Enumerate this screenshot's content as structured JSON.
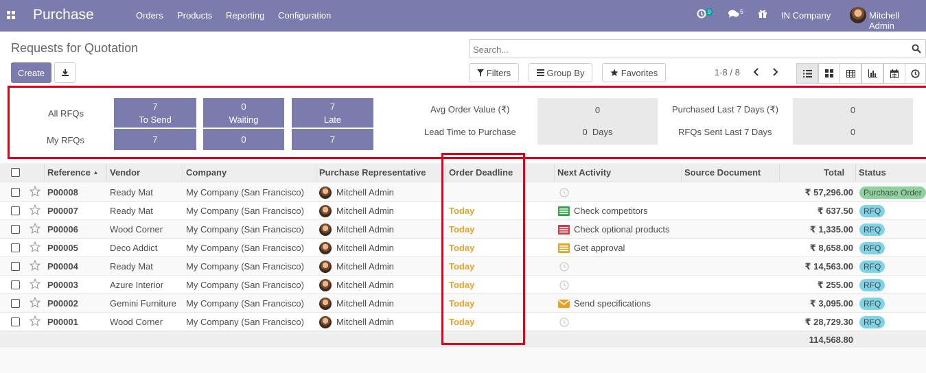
{
  "navbar": {
    "brand": "Purchase",
    "menu": [
      "Orders",
      "Products",
      "Reporting",
      "Configuration"
    ],
    "activity_count": "9",
    "messages_count": "5",
    "company": "IN Company",
    "user": "Mitchell Admin"
  },
  "control": {
    "title": "Requests for Quotation",
    "create_label": "Create",
    "search_placeholder": "Search...",
    "filters_label": "Filters",
    "groupby_label": "Group By",
    "favorites_label": "Favorites",
    "pager": "1-8 / 8"
  },
  "dashboard": {
    "all_rfqs_label": "All RFQs",
    "my_rfqs_label": "My RFQs",
    "tiles": [
      {
        "all": "7",
        "label": "To Send",
        "my": "7"
      },
      {
        "all": "0",
        "label": "Waiting",
        "my": "0"
      },
      {
        "all": "7",
        "label": "Late",
        "my": "7"
      }
    ],
    "stats": [
      {
        "label": "Avg Order Value (₹)",
        "value": "0"
      },
      {
        "label": "Lead Time to Purchase",
        "value": "0  Days"
      },
      {
        "label": "Purchased Last 7 Days (₹)",
        "value": "0"
      },
      {
        "label": "RFQs Sent Last 7 Days",
        "value": "0"
      }
    ]
  },
  "table": {
    "headers": {
      "reference": "Reference",
      "vendor": "Vendor",
      "company": "Company",
      "rep": "Purchase Representative",
      "deadline": "Order Deadline",
      "activity": "Next Activity",
      "source": "Source Document",
      "total": "Total",
      "status": "Status"
    },
    "rows": [
      {
        "ref": "P00008",
        "vendor": "Ready Mat",
        "company": "My Company (San Francisco)",
        "rep": "Mitchell Admin",
        "deadline": "",
        "activity": "",
        "activity_icon": "clock-icon",
        "total": "₹ 57,296.00",
        "status": "Purchase Order"
      },
      {
        "ref": "P00007",
        "vendor": "Ready Mat",
        "company": "My Company (San Francisco)",
        "rep": "Mitchell Admin",
        "deadline": "Today",
        "activity": "Check competitors",
        "activity_icon": "todo-icon",
        "activity_color": "#28a745",
        "total": "₹ 637.50",
        "status": "RFQ"
      },
      {
        "ref": "P00006",
        "vendor": "Wood Corner",
        "company": "My Company (San Francisco)",
        "rep": "Mitchell Admin",
        "deadline": "Today",
        "activity": "Check optional products",
        "activity_icon": "todo-icon",
        "activity_color": "#dc3545",
        "total": "₹ 1,335.00",
        "status": "RFQ"
      },
      {
        "ref": "P00005",
        "vendor": "Deco Addict",
        "company": "My Company (San Francisco)",
        "rep": "Mitchell Admin",
        "deadline": "Today",
        "activity": "Get approval",
        "activity_icon": "todo-icon",
        "activity_color": "#e9a125",
        "total": "₹ 8,658.00",
        "status": "RFQ"
      },
      {
        "ref": "P00004",
        "vendor": "Ready Mat",
        "company": "My Company (San Francisco)",
        "rep": "Mitchell Admin",
        "deadline": "Today",
        "activity": "",
        "activity_icon": "clock-icon",
        "total": "₹ 14,563.00",
        "status": "RFQ"
      },
      {
        "ref": "P00003",
        "vendor": "Azure Interior",
        "company": "My Company (San Francisco)",
        "rep": "Mitchell Admin",
        "deadline": "Today",
        "activity": "",
        "activity_icon": "clock-icon",
        "total": "₹ 255.00",
        "status": "RFQ"
      },
      {
        "ref": "P00002",
        "vendor": "Gemini Furniture",
        "company": "My Company (San Francisco)",
        "rep": "Mitchell Admin",
        "deadline": "Today",
        "activity": "Send specifications",
        "activity_icon": "envelope-icon",
        "activity_color": "#e9a125",
        "total": "₹ 3,095.00",
        "status": "RFQ"
      },
      {
        "ref": "P00001",
        "vendor": "Wood Corner",
        "company": "My Company (San Francisco)",
        "rep": "Mitchell Admin",
        "deadline": "Today",
        "activity": "",
        "activity_icon": "clock-icon",
        "total": "₹ 28,729.30",
        "status": "RFQ"
      }
    ],
    "footer_total": "114,568.80"
  },
  "colors": {
    "brand": "#7c7bad",
    "deadline_today": "#e9a125",
    "highlight_border": "#e0001a",
    "status_po": "#8fd19e",
    "status_rfq": "#7fd3e6"
  }
}
